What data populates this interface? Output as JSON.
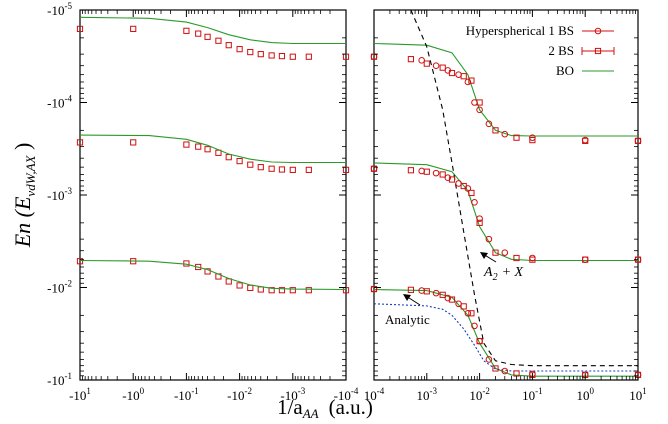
{
  "chart_data": [
    {
      "type": "scatter",
      "panel": "left",
      "xscale": "negative-log",
      "yscale": "negative-log",
      "xlim": [
        -10,
        -0.0001
      ],
      "ylim": [
        -1e-05,
        -0.1
      ],
      "x_ticks": [
        "-10^1",
        "-10^0",
        "-10^-1",
        "-10^-2",
        "-10^-3",
        "-10^-4"
      ],
      "y_ticks": [
        "-10^-5",
        "-10^-4",
        "-10^-3",
        "-10^-2",
        "-10^-1"
      ],
      "series": [
        {
          "name": "2 BS",
          "marker": "square",
          "x": [
            -10,
            -1,
            -0.1,
            -0.06,
            -0.04,
            -0.025,
            -0.016,
            -0.01,
            -0.0063,
            -0.004,
            -0.0025,
            -0.0016,
            -0.001,
            -0.0005,
            -0.0001
          ],
          "levels": [
            [
              -1.6e-05,
              -1.6e-05,
              -1.68e-05,
              -1.8e-05,
              -1.95e-05,
              -2.15e-05,
              -2.4e-05,
              -2.65e-05,
              -2.85e-05,
              -3e-05,
              -3.1e-05,
              -3.15e-05,
              -3.2e-05,
              -3.2e-05,
              -3.2e-05
            ],
            [
              -0.00027,
              -0.00027,
              -0.000285,
              -0.0003,
              -0.00032,
              -0.00035,
              -0.00039,
              -0.00043,
              -0.00047,
              -0.0005,
              -0.00052,
              -0.00053,
              -0.000535,
              -0.000535,
              -0.000535
            ],
            [
              -0.0052,
              -0.0052,
              -0.0055,
              -0.006,
              -0.0067,
              -0.0076,
              -0.0086,
              -0.0095,
              -0.0101,
              -0.0105,
              -0.0107,
              -0.0107,
              -0.0107,
              -0.0107,
              -0.0107
            ]
          ]
        },
        {
          "name": "BO",
          "line": "solid",
          "levels": [
            {
              "x": [
                -10,
                -0.5,
                -0.1,
                -0.04,
                -0.016,
                -0.0063,
                -0.0025,
                -0.001,
                -0.0001
              ],
              "y": [
                -1.2e-05,
                -1.23e-05,
                -1.35e-05,
                -1.55e-05,
                -1.85e-05,
                -2.1e-05,
                -2.25e-05,
                -2.3e-05,
                -2.3e-05
              ]
            },
            {
              "x": [
                -10,
                -0.5,
                -0.1,
                -0.04,
                -0.016,
                -0.0063,
                -0.0025,
                -0.001,
                -0.0001
              ],
              "y": [
                -0.000225,
                -0.000228,
                -0.00025,
                -0.00029,
                -0.00036,
                -0.00041,
                -0.00044,
                -0.000445,
                -0.000445
              ]
            },
            {
              "x": [
                -10,
                -0.5,
                -0.1,
                -0.04,
                -0.016,
                -0.0063,
                -0.0025,
                -0.001,
                -0.0001
              ],
              "y": [
                -0.0051,
                -0.0052,
                -0.0056,
                -0.0064,
                -0.008,
                -0.0094,
                -0.0102,
                -0.0104,
                -0.0105
              ]
            }
          ]
        }
      ]
    },
    {
      "type": "scatter",
      "panel": "right",
      "xscale": "log",
      "yscale": "negative-log",
      "xlim": [
        0.0001,
        10
      ],
      "ylim": [
        -1e-05,
        -0.1
      ],
      "x_ticks": [
        "10^-4",
        "10^-3",
        "10^-2",
        "10^-1",
        "10^0",
        "10^1"
      ],
      "series": [
        {
          "name": "Hyperspherical 1 BS",
          "marker": "circle",
          "x": [
            0.0001,
            0.0008,
            0.0015,
            0.0025,
            0.004,
            0.006,
            0.008,
            0.01,
            0.015,
            0.03,
            0.1,
            1,
            10
          ],
          "levels": [
            [
              -3.2e-05,
              -3.5e-05,
              -4e-05,
              -4.5e-05,
              -5e-05,
              -6e-05,
              -0.0001,
              -0.00012,
              -0.00017,
              -0.00022,
              -0.00024,
              -0.000255,
              -0.00026
            ],
            [
              -0.00052,
              -0.00055,
              -0.00058,
              -0.00065,
              -0.00075,
              -0.00085,
              -0.0012,
              -0.0018,
              -0.003,
              -0.0042,
              -0.0048,
              -0.005,
              -0.005
            ],
            [
              -0.0104,
              -0.0108,
              -0.0115,
              -0.013,
              -0.015,
              -0.019,
              -0.026,
              -0.038,
              -0.06,
              -0.08,
              -0.086,
              -0.088,
              -0.088
            ]
          ]
        },
        {
          "name": "2 BS",
          "marker": "square",
          "x": [
            0.0001,
            0.0005,
            0.001,
            0.002,
            0.003,
            0.005,
            0.007,
            0.01,
            0.02,
            0.05,
            0.1,
            1,
            10
          ],
          "levels": [
            [
              -3.2e-05,
              -3.4e-05,
              -3.8e-05,
              -4.2e-05,
              -4.8e-05,
              -5.2e-05,
              -5.8e-05,
              -0.0001,
              -0.0002,
              -0.00024,
              -0.000255,
              -0.00026,
              -0.00026
            ],
            [
              -0.00052,
              -0.00054,
              -0.00056,
              -0.0006,
              -0.00068,
              -0.0008,
              -0.00095,
              -0.002,
              -0.0042,
              -0.0048,
              -0.005,
              -0.005,
              -0.005
            ],
            [
              -0.0104,
              -0.0106,
              -0.011,
              -0.012,
              -0.0135,
              -0.016,
              -0.019,
              -0.038,
              -0.075,
              -0.085,
              -0.088,
              -0.088,
              -0.088
            ]
          ]
        },
        {
          "name": "BO",
          "line": "solid",
          "levels": [
            {
              "x": [
                0.0001,
                0.001,
                0.003,
                0.006,
                0.01,
                0.02,
                0.04,
                0.1,
                1,
                10
              ],
              "y": [
                -2.3e-05,
                -2.4e-05,
                -2.9e-05,
                -5e-05,
                -0.00012,
                -0.0002,
                -0.000228,
                -0.00023,
                -0.00023,
                -0.00023
              ]
            },
            {
              "x": [
                0.0001,
                0.001,
                0.003,
                0.006,
                0.01,
                0.02,
                0.04,
                0.1,
                1,
                10
              ],
              "y": [
                -0.00045,
                -0.00047,
                -0.00056,
                -0.0009,
                -0.0022,
                -0.0042,
                -0.00495,
                -0.0051,
                -0.0051,
                -0.0051
              ]
            },
            {
              "x": [
                0.0001,
                0.001,
                0.003,
                0.006,
                0.01,
                0.02,
                0.04,
                0.1,
                1,
                10
              ],
              "y": [
                -0.0105,
                -0.0108,
                -0.0128,
                -0.02,
                -0.04,
                -0.075,
                -0.088,
                -0.091,
                -0.091,
                -0.091
              ]
            }
          ]
        },
        {
          "name": "A_2 + X",
          "line": "dashed",
          "x": [
            0.0005,
            0.001,
            0.002,
            0.003,
            0.005,
            0.008,
            0.012,
            0.02,
            0.04,
            0.1,
            1,
            10
          ],
          "y": [
            -1e-05,
            -2.5e-05,
            -0.00012,
            -0.00045,
            -0.0025,
            -0.012,
            -0.04,
            -0.062,
            -0.068,
            -0.07,
            -0.07,
            -0.07
          ]
        },
        {
          "name": "Analytic",
          "line": "dotted",
          "x": [
            0.0001,
            0.001,
            0.002,
            0.003,
            0.005,
            0.008,
            0.012,
            0.02,
            0.04,
            0.1,
            1,
            10
          ],
          "y": [
            -0.015,
            -0.0158,
            -0.0172,
            -0.02,
            -0.028,
            -0.042,
            -0.062,
            -0.076,
            -0.08,
            -0.08,
            -0.08,
            -0.08
          ]
        }
      ],
      "legend": {
        "position": "top-right",
        "entries": [
          "Hyperspherical 1 BS",
          "2 BS",
          "BO"
        ]
      },
      "annotations": [
        {
          "text": "A_2 + X",
          "arrow_to": [
            0.011,
            -0.01
          ]
        },
        {
          "text": "Analytic",
          "arrow_to": [
            0.0006,
            -0.0158
          ]
        }
      ]
    }
  ],
  "labels": {
    "ylabel": "En (E",
    "ylabel_sub": "vdW,AX",
    "xlabel": "1/a",
    "xlabel_sub": "AA",
    "xlabel_units": "(a.u.)",
    "yticks": [
      "-10",
      "-10",
      "-10",
      "-10",
      "-10"
    ],
    "yticks_exp": [
      "-5",
      "-4",
      "-3",
      "-2",
      "-1"
    ],
    "left_xticks": [
      "-10",
      "-10",
      "-10",
      "-10",
      "-10",
      "-10"
    ],
    "left_xticks_exp": [
      "1",
      "0",
      "-1",
      "-2",
      "-3",
      "-4"
    ],
    "right_xticks": [
      "10",
      "10",
      "10",
      "10",
      "10",
      "10"
    ],
    "right_xticks_exp": [
      "-4",
      "-3",
      "-2",
      "-1",
      "0",
      "1"
    ],
    "legend_1": "Hyperspherical 1 BS",
    "legend_2": "2 BS",
    "legend_3": "BO",
    "annotation_a2x": "A",
    "annotation_a2x_sub": "2",
    "annotation_a2x_suffix": "+ X",
    "annotation_analytic": "Analytic"
  },
  "colors": {
    "markers": "#d01010",
    "bo_line": "#2a9a2a",
    "dashed": "#000000",
    "dotted": "#1a3fc0",
    "frame": "#000000"
  }
}
